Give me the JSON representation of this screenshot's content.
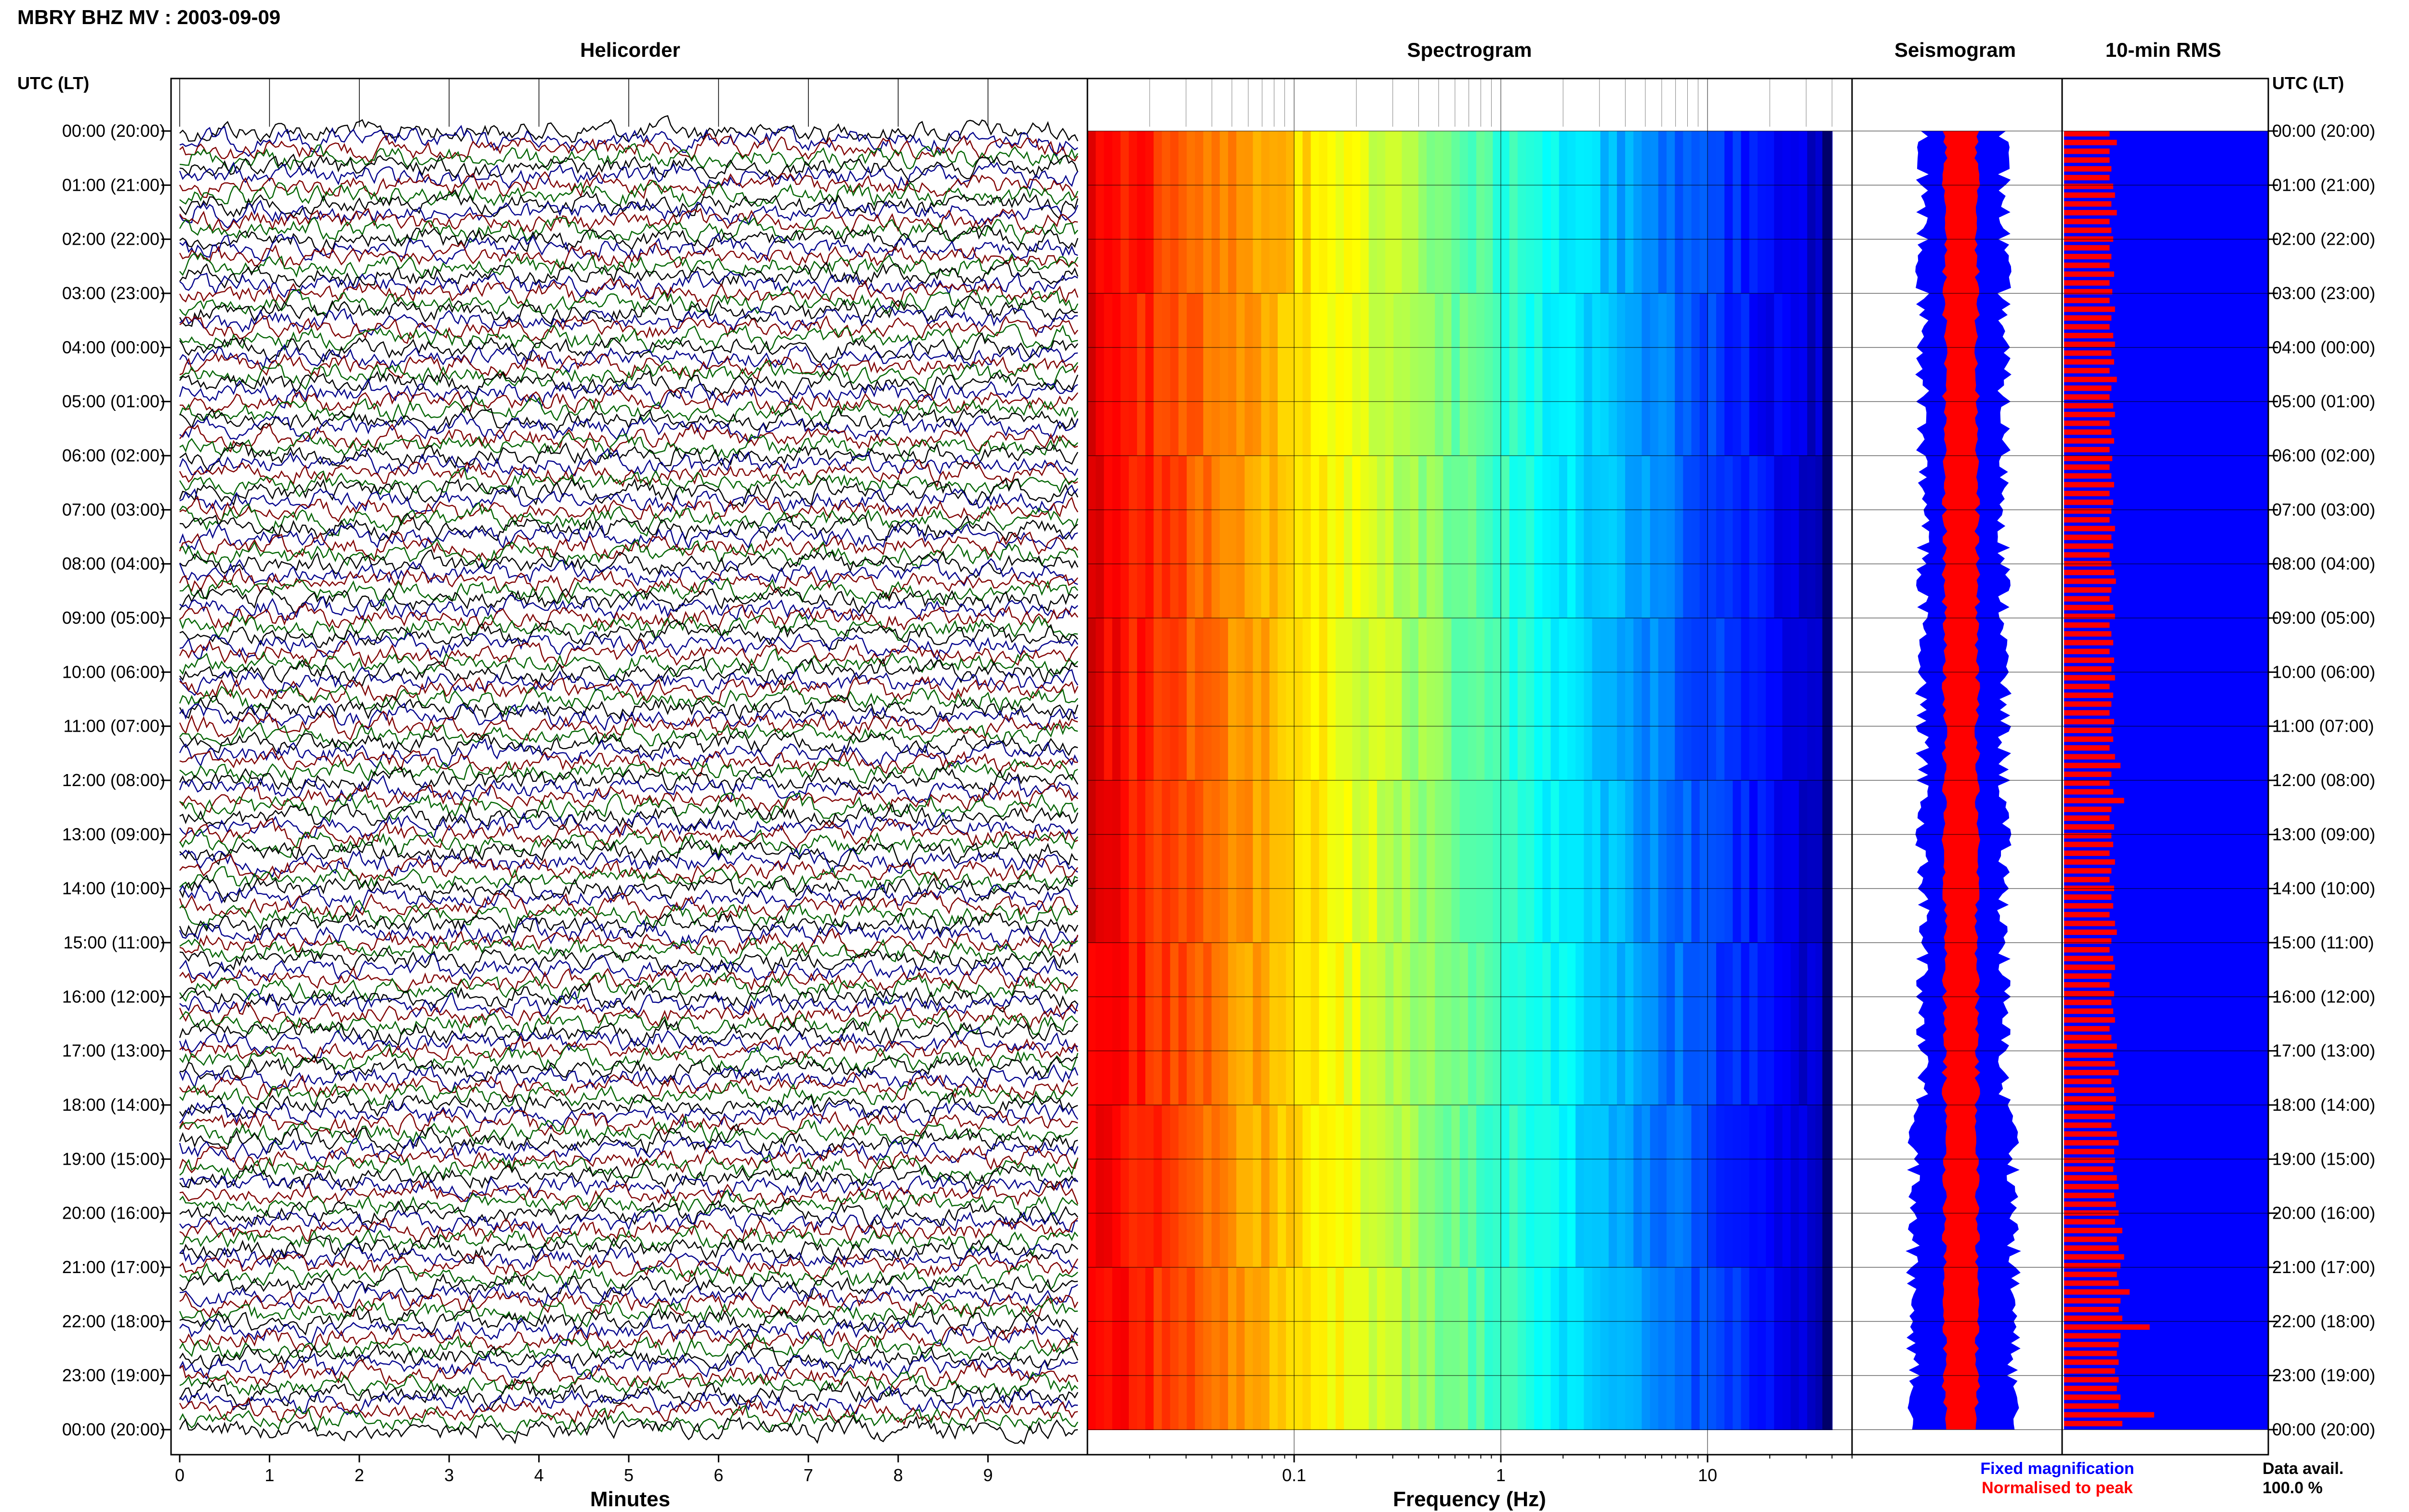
{
  "header": {
    "title": "MBRY BHZ MV : 2003-09-09"
  },
  "panels": {
    "helicorder": "Helicorder",
    "spectrogram": "Spectrogram",
    "seismogram": "Seismogram",
    "rms": "10-min RMS"
  },
  "axis": {
    "left_label": "UTC (LT)",
    "right_label": "UTC (LT)",
    "minutes_label": "Minutes",
    "frequency_label": "Frequency (Hz)"
  },
  "legend": {
    "fixed": "Fixed magnification",
    "fixed_color": "#0000ff",
    "normalised": "Normalised to peak",
    "normalised_color": "#ff0000",
    "data_avail_label": "Data avail.",
    "data_avail_value": "100.0 %"
  },
  "colors": {
    "trace_cycle": [
      "#000000",
      "#00008b",
      "#800000",
      "#006400"
    ],
    "rms_bg": "#0000ff",
    "rms_bar": "#ff0000",
    "seis_env": "#0000ff",
    "seis_norm": "#ff0000"
  },
  "chart_data": [
    {
      "type": "line",
      "name": "helicorder",
      "x_ticks": [
        "0",
        "1",
        "2",
        "3",
        "4",
        "5",
        "6",
        "7",
        "8",
        "9"
      ],
      "xlim": [
        0,
        10
      ],
      "xlabel": "Minutes",
      "rows_utc": [
        "00:00 (20:00)",
        "01:00 (21:00)",
        "02:00 (22:00)",
        "03:00 (23:00)",
        "04:00 (00:00)",
        "05:00 (01:00)",
        "06:00 (02:00)",
        "07:00 (03:00)",
        "08:00 (04:00)",
        "09:00 (05:00)",
        "10:00 (06:00)",
        "11:00 (07:00)",
        "12:00 (08:00)",
        "13:00 (09:00)",
        "14:00 (10:00)",
        "15:00 (11:00)",
        "16:00 (12:00)",
        "17:00 (13:00)",
        "18:00 (14:00)",
        "19:00 (15:00)",
        "20:00 (16:00)",
        "21:00 (17:00)",
        "22:00 (18:00)",
        "23:00 (19:00)",
        "00:00 (20:00)"
      ],
      "traces_per_hour": 6,
      "trace_colors": [
        "#000000",
        "#00008b",
        "#800000",
        "#006400"
      ]
    },
    {
      "type": "heatmap",
      "name": "spectrogram",
      "x_scale": "log",
      "xlim": [
        0.01,
        50
      ],
      "x_ticks": [
        "0.1",
        "1",
        "10"
      ],
      "x_tick_values": [
        0.1,
        1,
        10
      ],
      "xlabel": "Frequency (Hz)",
      "colormap": "jet",
      "data_extent_hz": [
        0.01,
        40
      ]
    },
    {
      "type": "line",
      "name": "seismogram"
    },
    {
      "type": "bar",
      "name": "rms",
      "values": [
        0.5,
        0.58,
        0.5,
        0.5,
        0.52,
        0.5,
        0.54,
        0.56,
        0.52,
        0.58,
        0.5,
        0.52,
        0.54,
        0.5,
        0.52,
        0.5,
        0.55,
        0.5,
        0.53,
        0.5,
        0.56,
        0.52,
        0.5,
        0.54,
        0.56,
        0.52,
        0.55,
        0.5,
        0.58,
        0.52,
        0.5,
        0.54,
        0.56,
        0.5,
        0.52,
        0.55,
        0.5,
        0.53,
        0.5,
        0.52,
        0.55,
        0.5,
        0.54,
        0.52,
        0.5,
        0.56,
        0.52,
        0.54,
        0.5,
        0.52,
        0.55,
        0.57,
        0.52,
        0.5,
        0.54,
        0.56,
        0.5,
        0.52,
        0.54,
        0.5,
        0.55,
        0.52,
        0.56,
        0.5,
        0.54,
        0.52,
        0.5,
        0.55,
        0.52,
        0.54,
        0.5,
        0.56,
        0.62,
        0.52,
        0.5,
        0.54,
        0.66,
        0.52,
        0.5,
        0.55,
        0.52,
        0.54,
        0.5,
        0.56,
        0.52,
        0.5,
        0.55,
        0.52,
        0.54,
        0.5,
        0.56,
        0.58,
        0.52,
        0.5,
        0.54,
        0.56,
        0.52,
        0.5,
        0.55,
        0.52,
        0.54,
        0.56,
        0.5,
        0.52,
        0.58,
        0.54,
        0.56,
        0.6,
        0.52,
        0.55,
        0.57,
        0.54,
        0.56,
        0.52,
        0.58,
        0.6,
        0.55,
        0.56,
        0.54,
        0.58,
        0.6,
        0.55,
        0.57,
        0.6,
        0.56,
        0.64,
        0.58,
        0.6,
        0.66,
        0.62,
        0.58,
        0.6,
        0.72,
        0.62,
        0.6,
        0.64,
        0.94,
        0.62,
        0.6,
        0.58,
        0.6,
        0.56,
        0.6,
        0.58,
        0.62,
        0.6,
        0.99,
        0.64
      ]
    }
  ]
}
